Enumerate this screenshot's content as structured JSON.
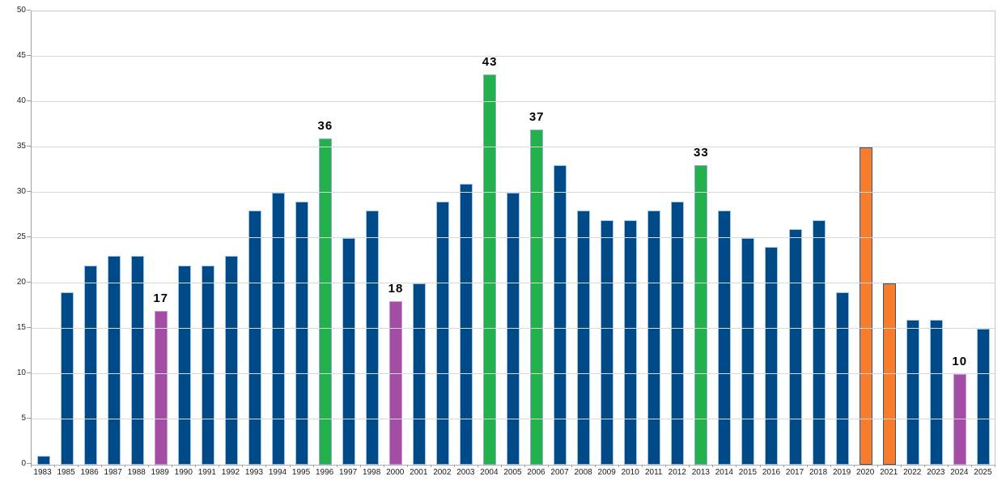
{
  "chart_data": {
    "type": "bar",
    "title": "",
    "xlabel": "",
    "ylabel": "",
    "ylim": [
      0,
      50
    ],
    "yticks": [
      0,
      5,
      10,
      15,
      20,
      25,
      30,
      35,
      40,
      45,
      50
    ],
    "grid": true,
    "legend": "none",
    "categories": [
      "1983",
      "1985",
      "1986",
      "1987",
      "1988",
      "1989",
      "1990",
      "1991",
      "1992",
      "1993",
      "1994",
      "1995",
      "1996",
      "1997",
      "1998",
      "2000",
      "2001",
      "2002",
      "2003",
      "2004",
      "2005",
      "2006",
      "2007",
      "2008",
      "2009",
      "2010",
      "2011",
      "2012",
      "2013",
      "2014",
      "2015",
      "2016",
      "2017",
      "2018",
      "2019",
      "2020",
      "2021",
      "2022",
      "2023",
      "2024",
      "2025"
    ],
    "values": [
      1,
      19,
      22,
      23,
      23,
      17,
      22,
      22,
      23,
      28,
      30,
      29,
      36,
      25,
      28,
      18,
      20,
      29,
      31,
      43,
      30,
      37,
      33,
      28,
      27,
      27,
      28,
      29,
      33,
      28,
      25,
      24,
      26,
      27,
      19,
      35,
      20,
      16,
      16,
      10,
      15
    ],
    "bar_colors": [
      "blue",
      "blue",
      "blue",
      "blue",
      "blue",
      "purple",
      "blue",
      "blue",
      "blue",
      "blue",
      "blue",
      "blue",
      "green",
      "blue",
      "blue",
      "purple",
      "blue",
      "blue",
      "blue",
      "green",
      "blue",
      "green",
      "blue",
      "blue",
      "blue",
      "blue",
      "blue",
      "blue",
      "green",
      "blue",
      "blue",
      "blue",
      "blue",
      "blue",
      "blue",
      "orange",
      "orange",
      "blue",
      "blue",
      "purple",
      "blue"
    ],
    "data_labels": [
      "",
      "",
      "",
      "",
      "",
      "17",
      "",
      "",
      "",
      "",
      "",
      "",
      "36",
      "",
      "",
      "18",
      "",
      "",
      "",
      "43",
      "",
      "37",
      "",
      "",
      "",
      "",
      "",
      "",
      "33",
      "",
      "",
      "",
      "",
      "",
      "",
      "",
      "",
      "",
      "",
      "10",
      ""
    ],
    "palette": {
      "blue": {
        "fill": "#004A87",
        "border": "#9DC3E6"
      },
      "green": {
        "fill": "#22B14C",
        "border": "#93AFC7"
      },
      "purple": {
        "fill": "#A44DA4",
        "border": "#C79BD1"
      },
      "orange": {
        "fill": "#F97C2C",
        "border": "#2E5A86"
      }
    },
    "style": {
      "gridline_color": "#D9D9D9",
      "axis_color": "#9E9E9E",
      "frame_color": "#C8C8C8",
      "label_color": "#000000"
    }
  }
}
